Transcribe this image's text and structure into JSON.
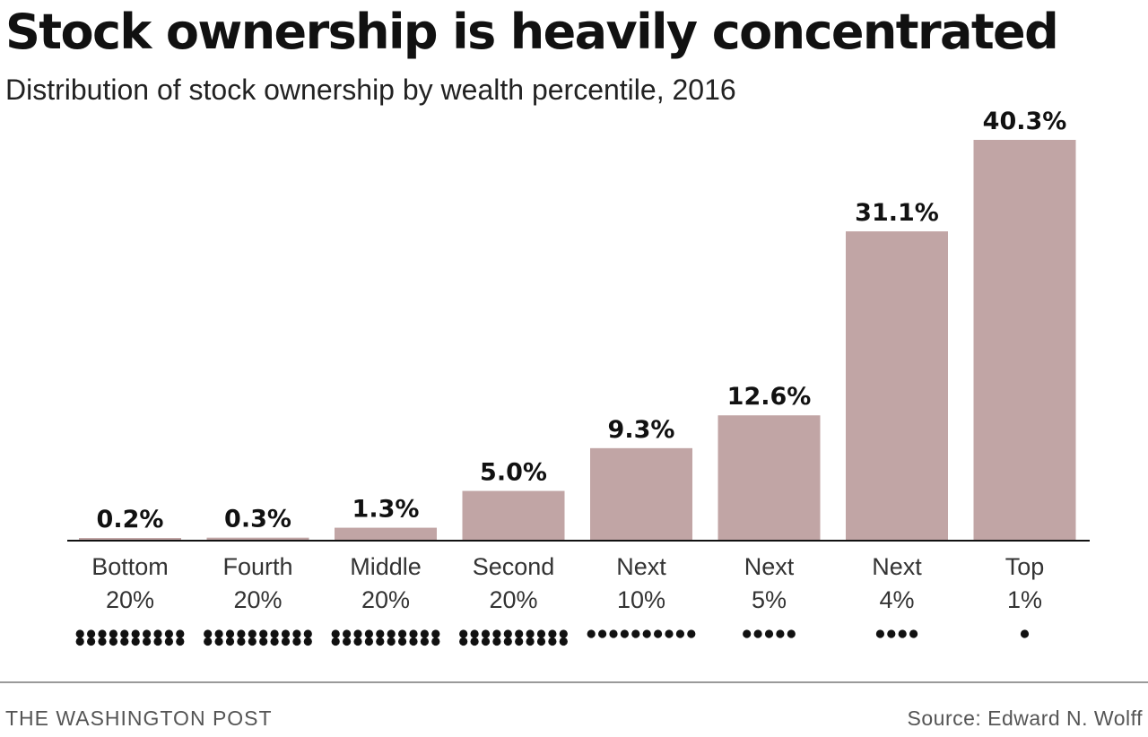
{
  "chart_data": {
    "type": "bar",
    "title": "Stock ownership is heavily concentrated",
    "subtitle": "Distribution of stock ownership by wealth percentile, 2016",
    "categories": [
      [
        "Bottom",
        "20%"
      ],
      [
        "Fourth",
        "20%"
      ],
      [
        "Middle",
        "20%"
      ],
      [
        "Second",
        "20%"
      ],
      [
        "Next",
        "10%"
      ],
      [
        "Next",
        "5%"
      ],
      [
        "Next",
        "4%"
      ],
      [
        "Top",
        "1%"
      ]
    ],
    "values": [
      0.2,
      0.3,
      1.3,
      5.0,
      9.3,
      12.6,
      31.1,
      40.3
    ],
    "value_labels": [
      "0.2%",
      "0.3%",
      "1.3%",
      "5.0%",
      "9.3%",
      "12.6%",
      "31.1%",
      "40.3%"
    ],
    "population_share_pct": [
      20,
      20,
      20,
      20,
      10,
      5,
      4,
      1
    ],
    "unit": "%",
    "ylim": [
      0,
      40.3
    ],
    "grid": false,
    "legend": "none",
    "colors": {
      "bar": "#c1a5a5",
      "baseline": "#111111",
      "text": "#111111"
    }
  },
  "footer": {
    "credit": "THE WASHINGTON POST",
    "source": "Source: Edward N. Wolff"
  }
}
